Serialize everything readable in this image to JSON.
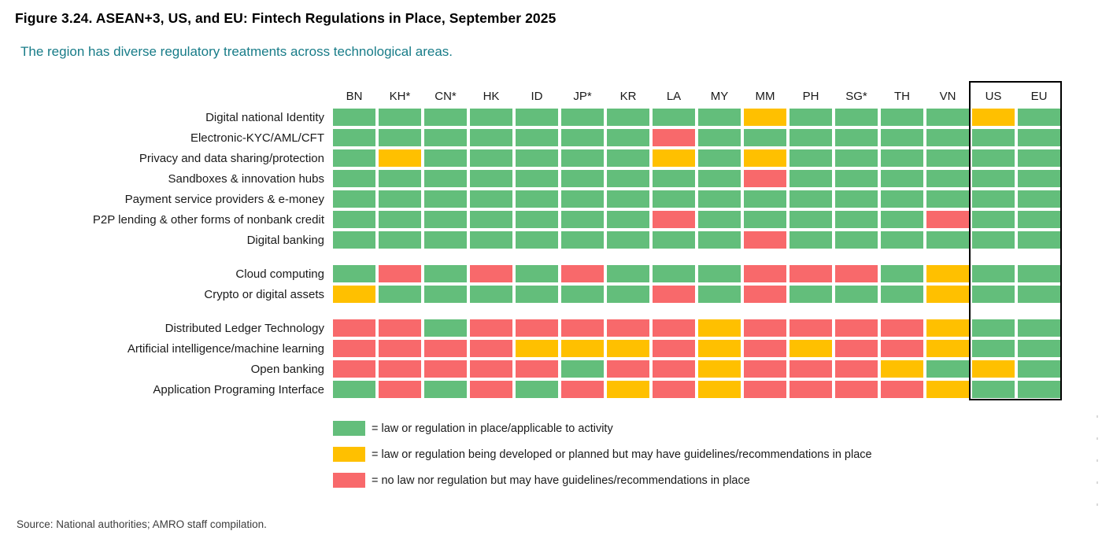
{
  "title": "Figure 3.24. ASEAN+3, US, and EU: Fintech Regulations in Place, September 2025",
  "subtitle": "The region has diverse regulatory treatments across technological areas.",
  "source": "Source: National authorities; AMRO staff compilation.",
  "colors": {
    "green": "#63BE7B",
    "yellow": "#FFC000",
    "red": "#F8696B",
    "subtitle_teal": "#187C88",
    "highlight_border": "#000000"
  },
  "chart_data": {
    "type": "heatmap",
    "columns": [
      "BN",
      "KH*",
      "CN*",
      "HK",
      "ID",
      "JP*",
      "KR",
      "LA",
      "MY",
      "MM",
      "PH",
      "SG*",
      "TH",
      "VN",
      "US",
      "EU"
    ],
    "highlighted_columns": [
      "US",
      "EU"
    ],
    "value_codes": {
      "G": "green",
      "Y": "yellow",
      "R": "red"
    },
    "legend": [
      {
        "code": "G",
        "color": "#63BE7B",
        "label": "= law or regulation in place/applicable to activity"
      },
      {
        "code": "Y",
        "color": "#FFC000",
        "label": "= law or regulation being developed or planned but may have guidelines/recommendations in place"
      },
      {
        "code": "R",
        "color": "#F8696B",
        "label": "= no law nor regulation but may have guidelines/recommendations in place"
      }
    ],
    "row_groups": [
      {
        "rows": [
          {
            "label": "Digital national Identity",
            "values": [
              "G",
              "G",
              "G",
              "G",
              "G",
              "G",
              "G",
              "G",
              "G",
              "Y",
              "G",
              "G",
              "G",
              "G",
              "Y",
              "G"
            ]
          },
          {
            "label": "Electronic-KYC/AML/CFT",
            "values": [
              "G",
              "G",
              "G",
              "G",
              "G",
              "G",
              "G",
              "R",
              "G",
              "G",
              "G",
              "G",
              "G",
              "G",
              "G",
              "G"
            ]
          },
          {
            "label": "Privacy and data sharing/protection",
            "values": [
              "G",
              "Y",
              "G",
              "G",
              "G",
              "G",
              "G",
              "Y",
              "G",
              "Y",
              "G",
              "G",
              "G",
              "G",
              "G",
              "G"
            ]
          },
          {
            "label": "Sandboxes & innovation hubs",
            "values": [
              "G",
              "G",
              "G",
              "G",
              "G",
              "G",
              "G",
              "G",
              "G",
              "R",
              "G",
              "G",
              "G",
              "G",
              "G",
              "G"
            ]
          },
          {
            "label": "Payment service providers & e-money",
            "values": [
              "G",
              "G",
              "G",
              "G",
              "G",
              "G",
              "G",
              "G",
              "G",
              "G",
              "G",
              "G",
              "G",
              "G",
              "G",
              "G"
            ]
          },
          {
            "label": "P2P lending & other forms of nonbank credit",
            "values": [
              "G",
              "G",
              "G",
              "G",
              "G",
              "G",
              "G",
              "R",
              "G",
              "G",
              "G",
              "G",
              "G",
              "R",
              "G",
              "G"
            ]
          },
          {
            "label": "Digital banking",
            "values": [
              "G",
              "G",
              "G",
              "G",
              "G",
              "G",
              "G",
              "G",
              "G",
              "R",
              "G",
              "G",
              "G",
              "G",
              "G",
              "G"
            ]
          }
        ]
      },
      {
        "rows": [
          {
            "label": "Cloud computing",
            "values": [
              "G",
              "R",
              "G",
              "R",
              "G",
              "R",
              "G",
              "G",
              "G",
              "R",
              "R",
              "R",
              "G",
              "Y",
              "G",
              "G"
            ]
          },
          {
            "label": "Crypto or digital assets",
            "values": [
              "Y",
              "G",
              "G",
              "G",
              "G",
              "G",
              "G",
              "R",
              "G",
              "R",
              "G",
              "G",
              "G",
              "Y",
              "G",
              "G"
            ]
          }
        ]
      },
      {
        "rows": [
          {
            "label": "Distributed Ledger Technology",
            "values": [
              "R",
              "R",
              "G",
              "R",
              "R",
              "R",
              "R",
              "R",
              "Y",
              "R",
              "R",
              "R",
              "R",
              "Y",
              "G",
              "G"
            ]
          },
          {
            "label": "Artificial intelligence/machine learning",
            "values": [
              "R",
              "R",
              "R",
              "R",
              "Y",
              "Y",
              "Y",
              "R",
              "Y",
              "R",
              "Y",
              "R",
              "R",
              "Y",
              "G",
              "G"
            ]
          },
          {
            "label": "Open banking",
            "values": [
              "R",
              "R",
              "R",
              "R",
              "R",
              "G",
              "R",
              "R",
              "Y",
              "R",
              "R",
              "R",
              "Y",
              "G",
              "Y",
              "G"
            ]
          },
          {
            "label": "Application Programing Interface",
            "values": [
              "G",
              "R",
              "G",
              "R",
              "G",
              "R",
              "Y",
              "R",
              "Y",
              "R",
              "R",
              "R",
              "R",
              "Y",
              "G",
              "G"
            ]
          }
        ]
      }
    ]
  }
}
